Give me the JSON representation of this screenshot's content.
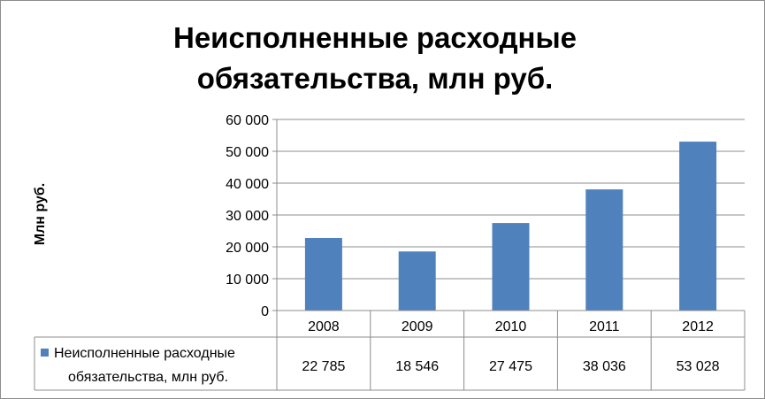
{
  "chart_data": {
    "type": "bar",
    "title": "Неисполненные расходные обязательства, млн руб.",
    "title_lines": [
      "Неисполненные расходные",
      "обязательства, млн руб."
    ],
    "ylabel": "Млн руб.",
    "xlabel": "",
    "ylim": [
      0,
      60000
    ],
    "y_ticks": [
      0,
      10000,
      20000,
      30000,
      40000,
      50000,
      60000
    ],
    "y_tick_labels": [
      "0",
      "10 000",
      "20 000",
      "30 000",
      "40 000",
      "50 000",
      "60 000"
    ],
    "grid": true,
    "categories": [
      "2008",
      "2009",
      "2010",
      "2011",
      "2012"
    ],
    "series": [
      {
        "name": "Неисполненные расходные обязательства, млн руб.",
        "legend_lines": [
          "Неисполненные расходные",
          "обязательства, млн руб."
        ],
        "values": [
          22785,
          18546,
          27475,
          38036,
          53028
        ],
        "value_labels": [
          "22 785",
          "18 546",
          "27 475",
          "38 036",
          "53 028"
        ],
        "color": "#4f81bd"
      }
    ],
    "data_table": true
  }
}
